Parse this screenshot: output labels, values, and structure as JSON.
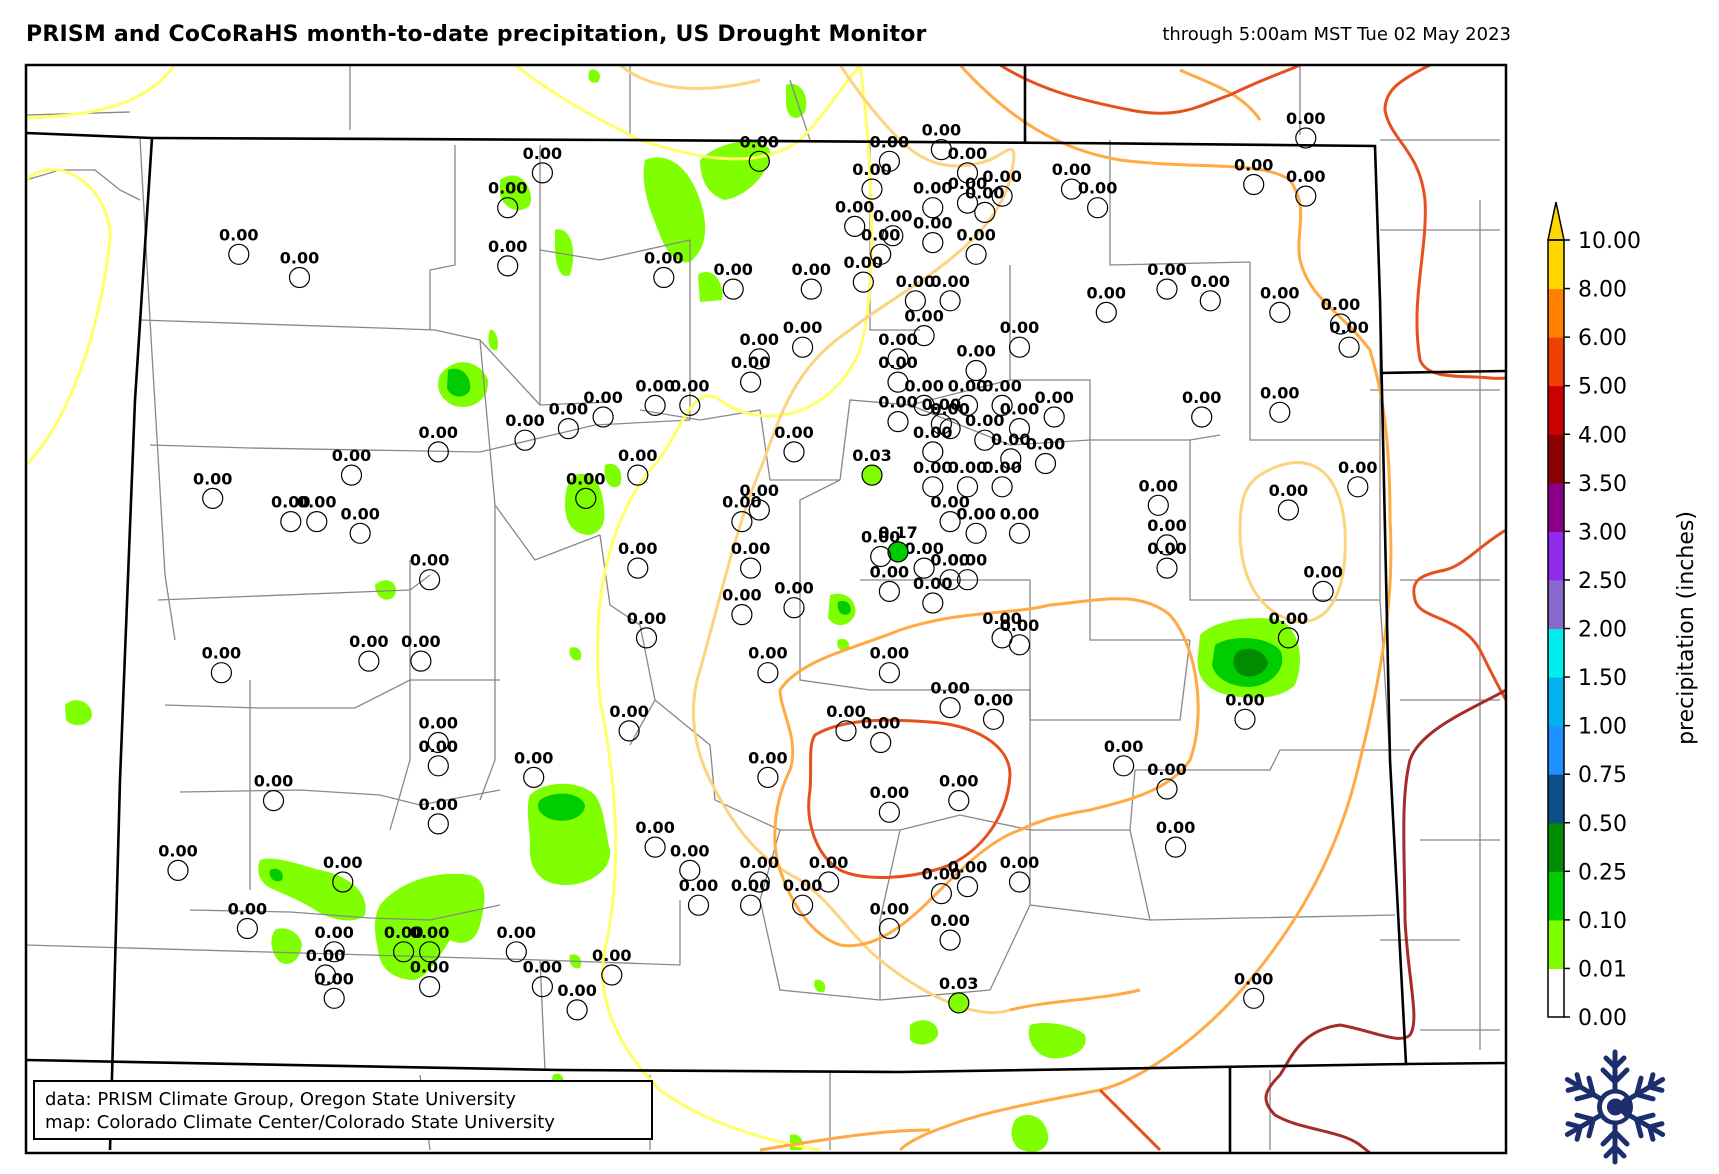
{
  "title": "PRISM and CoCoRaHS month-to-date precipitation, US Drought Monitor",
  "subtitle": "through 5:00am MST Tue 02 May 2023",
  "credits": {
    "line1": "data: PRISM Climate Group, Oregon State University",
    "line2": "map: Colorado Climate Center/Colorado State University"
  },
  "colorbar": {
    "label": "precipitation (inches)",
    "ticks": [
      "0.00",
      "0.01",
      "0.10",
      "0.25",
      "0.50",
      "0.75",
      "1.00",
      "1.50",
      "2.00",
      "2.50",
      "3.00",
      "3.50",
      "4.00",
      "5.00",
      "6.00",
      "8.00",
      "10.00"
    ],
    "colors": [
      "#ffffff",
      "#7fff00",
      "#00cd00",
      "#008b00",
      "#104e8b",
      "#1e90ff",
      "#00b2ee",
      "#00eeee",
      "#8968cd",
      "#912cee",
      "#8b008b",
      "#8b0000",
      "#cd0000",
      "#ee4000",
      "#ff7f00",
      "#ffd700"
    ]
  },
  "drought_colors": {
    "D0": "#ffff66",
    "D1": "#fcd37f",
    "D2": "#ffaa44",
    "D3": "#e6501e",
    "D4": "#a52a2a"
  },
  "stations": [
    {
      "label": "0.00",
      "lon": -102.4,
      "lat": 41.0
    },
    {
      "label": "0.00",
      "lon": -102.7,
      "lat": 40.8
    },
    {
      "label": "0.00",
      "lon": -102.4,
      "lat": 40.75
    },
    {
      "label": "0.00",
      "lon": -103.75,
      "lat": 40.78
    },
    {
      "label": "0.00",
      "lon": -103.6,
      "lat": 40.7
    },
    {
      "label": "0.00",
      "lon": -104.5,
      "lat": 40.95
    },
    {
      "label": "0.00",
      "lon": -104.8,
      "lat": 40.9
    },
    {
      "label": "0.00",
      "lon": -104.35,
      "lat": 40.85
    },
    {
      "label": "0.00",
      "lon": -104.15,
      "lat": 40.75
    },
    {
      "label": "0.00",
      "lon": -104.35,
      "lat": 40.72
    },
    {
      "label": "0.00",
      "lon": -104.9,
      "lat": 40.78
    },
    {
      "label": "0.00",
      "lon": -104.55,
      "lat": 40.7
    },
    {
      "label": "0.00",
      "lon": -104.25,
      "lat": 40.68
    },
    {
      "label": "0.00",
      "lon": -105.55,
      "lat": 40.9
    },
    {
      "label": "0.00",
      "lon": -106.8,
      "lat": 40.85
    },
    {
      "label": "0.00",
      "lon": -107.0,
      "lat": 40.7
    },
    {
      "label": "0.00",
      "lon": -107.0,
      "lat": 40.45
    },
    {
      "label": "0.00",
      "lon": -108.55,
      "lat": 40.5
    },
    {
      "label": "0.00",
      "lon": -108.2,
      "lat": 40.4
    },
    {
      "label": "0.00",
      "lon": -106.1,
      "lat": 40.4
    },
    {
      "label": "0.00",
      "lon": -105.7,
      "lat": 40.35
    },
    {
      "label": "0.00",
      "lon": -105.25,
      "lat": 40.35
    },
    {
      "label": "0.00",
      "lon": -105.0,
      "lat": 40.62
    },
    {
      "label": "0.00",
      "lon": -104.78,
      "lat": 40.58
    },
    {
      "label": "0.00",
      "lon": -104.85,
      "lat": 40.5
    },
    {
      "label": "0.00",
      "lon": -104.55,
      "lat": 40.55
    },
    {
      "label": "0.00",
      "lon": -104.3,
      "lat": 40.5
    },
    {
      "label": "0.00",
      "lon": -104.95,
      "lat": 40.38
    },
    {
      "label": "0.00",
      "lon": -104.65,
      "lat": 40.3
    },
    {
      "label": "0.00",
      "lon": -104.45,
      "lat": 40.3
    },
    {
      "label": "0.00",
      "lon": -104.6,
      "lat": 40.15
    },
    {
      "label": "0.00",
      "lon": -104.75,
      "lat": 40.05
    },
    {
      "label": "0.00",
      "lon": -104.3,
      "lat": 40.0
    },
    {
      "label": "0.00",
      "lon": -104.05,
      "lat": 40.1
    },
    {
      "label": "0.00",
      "lon": -103.55,
      "lat": 40.25
    },
    {
      "label": "0.00",
      "lon": -103.2,
      "lat": 40.35
    },
    {
      "label": "0.00",
      "lon": -102.95,
      "lat": 40.3
    },
    {
      "label": "0.00",
      "lon": -102.55,
      "lat": 40.25
    },
    {
      "label": "0.00",
      "lon": -102.2,
      "lat": 40.2
    },
    {
      "label": "0.00",
      "lon": -102.15,
      "lat": 40.1
    },
    {
      "label": "0.00",
      "lon": -105.3,
      "lat": 40.1
    },
    {
      "label": "0.00",
      "lon": -105.55,
      "lat": 40.05
    },
    {
      "label": "0.00",
      "lon": -104.75,
      "lat": 39.95
    },
    {
      "label": "0.00",
      "lon": -104.6,
      "lat": 39.85
    },
    {
      "label": "0.00",
      "lon": -104.35,
      "lat": 39.85
    },
    {
      "label": "0.00",
      "lon": -104.15,
      "lat": 39.85
    },
    {
      "label": "0.00",
      "lon": -103.85,
      "lat": 39.8
    },
    {
      "label": "0.00",
      "lon": -104.75,
      "lat": 39.78
    },
    {
      "label": "0.00",
      "lon": -104.5,
      "lat": 39.77
    },
    {
      "label": "0.00",
      "lon": -104.45,
      "lat": 39.75
    },
    {
      "label": "0.00",
      "lon": -104.05,
      "lat": 39.75
    },
    {
      "label": "0.00",
      "lon": -104.25,
      "lat": 39.7
    },
    {
      "label": "0.00",
      "lon": -104.55,
      "lat": 39.65
    },
    {
      "label": "0.00",
      "lon": -104.1,
      "lat": 39.62
    },
    {
      "label": "0.00",
      "lon": -103.9,
      "lat": 39.6
    },
    {
      "label": "0.00",
      "lon": -103.0,
      "lat": 39.8
    },
    {
      "label": "0.00",
      "lon": -102.55,
      "lat": 39.82
    },
    {
      "label": "0.00",
      "lon": -102.1,
      "lat": 39.5
    },
    {
      "label": "0.00",
      "lon": -102.5,
      "lat": 39.4
    },
    {
      "label": "0.00",
      "lon": -103.25,
      "lat": 39.42
    },
    {
      "label": "0.00",
      "lon": -103.2,
      "lat": 39.25
    },
    {
      "label": "0.00",
      "lon": -103.2,
      "lat": 39.15
    },
    {
      "label": "0.00",
      "lon": -105.35,
      "lat": 39.65
    },
    {
      "label": "0.03",
      "lon": -104.9,
      "lat": 39.55
    },
    {
      "label": "0.00",
      "lon": -104.55,
      "lat": 39.5
    },
    {
      "label": "0.00",
      "lon": -104.35,
      "lat": 39.5
    },
    {
      "label": "0.00",
      "lon": -104.15,
      "lat": 39.5
    },
    {
      "label": "0.00",
      "lon": -104.45,
      "lat": 39.35
    },
    {
      "label": "0.00",
      "lon": -104.3,
      "lat": 39.3
    },
    {
      "label": "0.00",
      "lon": -104.05,
      "lat": 39.3
    },
    {
      "label": "0.00",
      "lon": -104.6,
      "lat": 39.15
    },
    {
      "label": "0.00",
      "lon": -104.45,
      "lat": 39.1
    },
    {
      "label": "0.00",
      "lon": -104.35,
      "lat": 39.1
    },
    {
      "label": "0.17",
      "lon": -104.75,
      "lat": 39.22
    },
    {
      "label": "0.00",
      "lon": -104.85,
      "lat": 39.2
    },
    {
      "label": "0.00",
      "lon": -104.8,
      "lat": 39.05
    },
    {
      "label": "0.00",
      "lon": -104.55,
      "lat": 39.0
    },
    {
      "label": "0.00",
      "lon": -104.15,
      "lat": 38.85
    },
    {
      "label": "0.00",
      "lon": -104.05,
      "lat": 38.82
    },
    {
      "label": "0.00",
      "lon": -102.3,
      "lat": 39.05
    },
    {
      "label": "0.00",
      "lon": -102.5,
      "lat": 38.85
    },
    {
      "label": "0.00",
      "lon": -102.75,
      "lat": 38.5
    },
    {
      "label": "0.00",
      "lon": -103.45,
      "lat": 38.3
    },
    {
      "label": "0.00",
      "lon": -103.2,
      "lat": 38.2
    },
    {
      "label": "0.00",
      "lon": -103.15,
      "lat": 37.95
    },
    {
      "label": "0.00",
      "lon": -102.7,
      "lat": 37.3
    },
    {
      "label": "0.00",
      "lon": -105.6,
      "lat": 39.95
    },
    {
      "label": "0.00",
      "lon": -105.95,
      "lat": 39.85
    },
    {
      "label": "0.00",
      "lon": -106.15,
      "lat": 39.85
    },
    {
      "label": "0.00",
      "lon": -106.45,
      "lat": 39.8
    },
    {
      "label": "0.00",
      "lon": -106.65,
      "lat": 39.75
    },
    {
      "label": "0.00",
      "lon": -106.9,
      "lat": 39.7
    },
    {
      "label": "0.00",
      "lon": -107.4,
      "lat": 39.65
    },
    {
      "label": "0.00",
      "lon": -107.9,
      "lat": 39.55
    },
    {
      "label": "0.00",
      "lon": -106.25,
      "lat": 39.55
    },
    {
      "label": "0.00",
      "lon": -106.55,
      "lat": 39.45
    },
    {
      "label": "0.00",
      "lon": -108.7,
      "lat": 39.45
    },
    {
      "label": "0.00",
      "lon": -108.25,
      "lat": 39.35
    },
    {
      "label": "0.00",
      "lon": -108.1,
      "lat": 39.35
    },
    {
      "label": "0.00",
      "lon": -107.85,
      "lat": 39.3
    },
    {
      "label": "0.00",
      "lon": -105.65,
      "lat": 39.35
    },
    {
      "label": "0.00",
      "lon": -105.55,
      "lat": 39.4
    },
    {
      "label": "0.00",
      "lon": -106.25,
      "lat": 39.15
    },
    {
      "label": "0.00",
      "lon": -105.6,
      "lat": 39.15
    },
    {
      "label": "0.00",
      "lon": -107.45,
      "lat": 39.1
    },
    {
      "label": "0.00",
      "lon": -105.65,
      "lat": 38.95
    },
    {
      "label": "0.00",
      "lon": -105.35,
      "lat": 38.98
    },
    {
      "label": "0.00",
      "lon": -106.2,
      "lat": 38.85
    },
    {
      "label": "0.00",
      "lon": -105.5,
      "lat": 38.7
    },
    {
      "label": "0.00",
      "lon": -107.8,
      "lat": 38.75
    },
    {
      "label": "0.00",
      "lon": -107.5,
      "lat": 38.75
    },
    {
      "label": "0.00",
      "lon": -108.65,
      "lat": 38.7
    },
    {
      "label": "0.00",
      "lon": -106.3,
      "lat": 38.45
    },
    {
      "label": "0.00",
      "lon": -104.8,
      "lat": 38.7
    },
    {
      "label": "0.00",
      "lon": -104.45,
      "lat": 38.55
    },
    {
      "label": "0.00",
      "lon": -104.2,
      "lat": 38.5
    },
    {
      "label": "0.00",
      "lon": -105.05,
      "lat": 38.45
    },
    {
      "label": "0.00",
      "lon": -104.85,
      "lat": 38.4
    },
    {
      "label": "0.00",
      "lon": -107.4,
      "lat": 38.4
    },
    {
      "label": "0.00",
      "lon": -107.4,
      "lat": 38.3
    },
    {
      "label": "0.00",
      "lon": -106.85,
      "lat": 38.25
    },
    {
      "label": "0.00",
      "lon": -105.5,
      "lat": 38.25
    },
    {
      "label": "0.00",
      "lon": -108.35,
      "lat": 38.15
    },
    {
      "label": "0.00",
      "lon": -104.4,
      "lat": 38.15
    },
    {
      "label": "0.00",
      "lon": -104.8,
      "lat": 38.1
    },
    {
      "label": "0.00",
      "lon": -107.4,
      "lat": 38.05
    },
    {
      "label": "0.00",
      "lon": -106.15,
      "lat": 37.95
    },
    {
      "label": "0.00",
      "lon": -105.95,
      "lat": 37.85
    },
    {
      "label": "0.00",
      "lon": -108.9,
      "lat": 37.85
    },
    {
      "label": "0.00",
      "lon": -107.95,
      "lat": 37.8
    },
    {
      "label": "0.00",
      "lon": -105.55,
      "lat": 37.8
    },
    {
      "label": "0.00",
      "lon": -105.15,
      "lat": 37.8
    },
    {
      "label": "0.00",
      "lon": -104.5,
      "lat": 37.75
    },
    {
      "label": "0.00",
      "lon": -104.35,
      "lat": 37.78
    },
    {
      "label": "0.00",
      "lon": -104.05,
      "lat": 37.8
    },
    {
      "label": "0.00",
      "lon": -105.9,
      "lat": 37.7
    },
    {
      "label": "0.00",
      "lon": -105.6,
      "lat": 37.7
    },
    {
      "label": "0.00",
      "lon": -105.3,
      "lat": 37.7
    },
    {
      "label": "0.00",
      "lon": -108.5,
      "lat": 37.6
    },
    {
      "label": "0.00",
      "lon": -104.8,
      "lat": 37.6
    },
    {
      "label": "0.00",
      "lon": -104.45,
      "lat": 37.55
    },
    {
      "label": "0.00",
      "lon": -108.0,
      "lat": 37.5
    },
    {
      "label": "0.00",
      "lon": -107.6,
      "lat": 37.5
    },
    {
      "label": "0.00",
      "lon": -107.45,
      "lat": 37.5
    },
    {
      "label": "0.00",
      "lon": -106.95,
      "lat": 37.5
    },
    {
      "label": "0.00",
      "lon": -108.05,
      "lat": 37.4
    },
    {
      "label": "0.00",
      "lon": -107.45,
      "lat": 37.35
    },
    {
      "label": "0.00",
      "lon": -106.8,
      "lat": 37.35
    },
    {
      "label": "0.00",
      "lon": -106.4,
      "lat": 37.4
    },
    {
      "label": "0.00",
      "lon": -108.0,
      "lat": 37.3
    },
    {
      "label": "0.00",
      "lon": -106.6,
      "lat": 37.25
    },
    {
      "label": "0.03",
      "lon": -104.4,
      "lat": 37.28
    }
  ]
}
